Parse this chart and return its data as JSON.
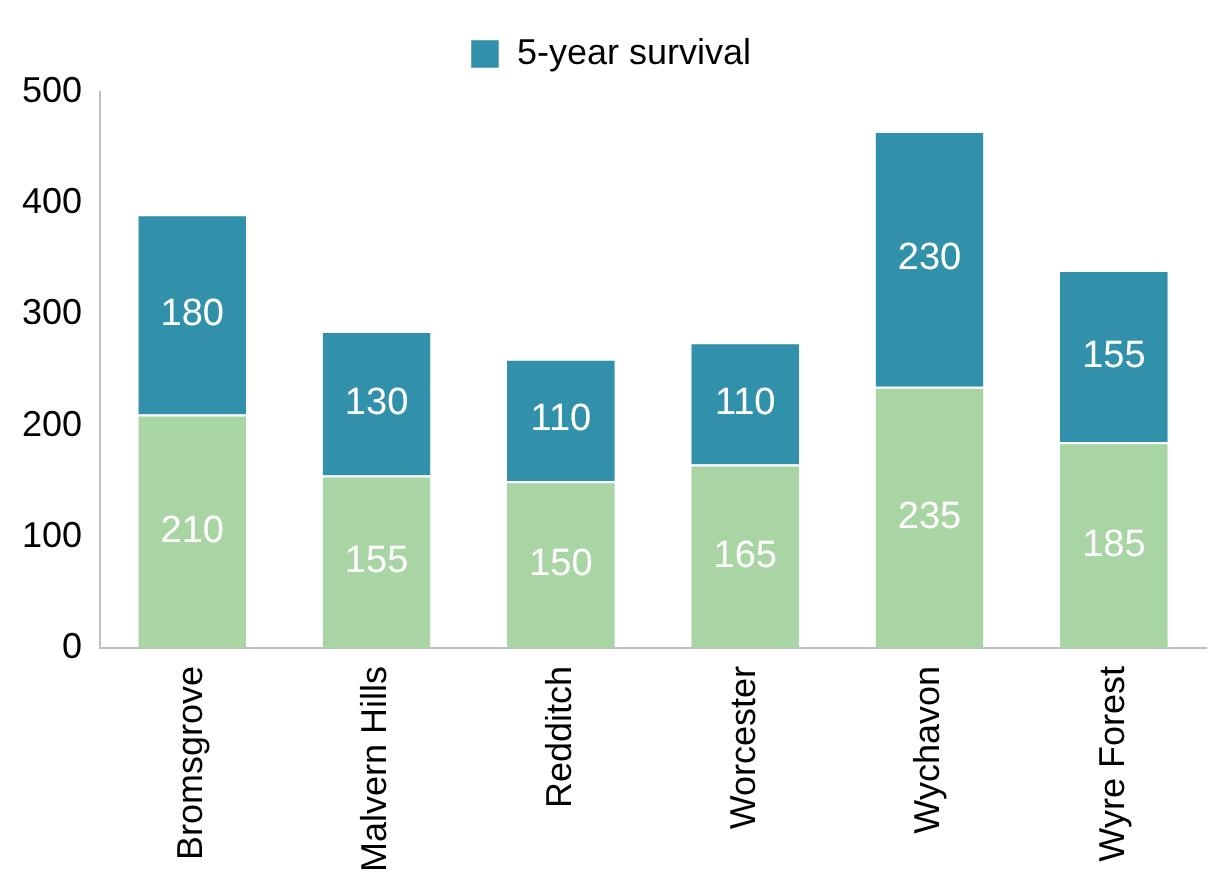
{
  "chart_data": {
    "type": "bar",
    "stacked": true,
    "categories": [
      "Bromsgrove",
      "Malvern Hills",
      "Redditch",
      "Worcester",
      "Wychavon",
      "Wyre Forest"
    ],
    "series": [
      {
        "color": "#a8d5a3",
        "values": [
          210,
          155,
          150,
          165,
          235,
          185
        ]
      },
      {
        "name": "5-year survival",
        "color": "#3191ab",
        "values": [
          180,
          130,
          110,
          110,
          230,
          155
        ]
      }
    ],
    "ylim": [
      0,
      500
    ],
    "yticks": [
      0,
      100,
      200,
      300,
      400,
      500
    ],
    "grid": false,
    "legend": "top",
    "data_labels": true
  }
}
